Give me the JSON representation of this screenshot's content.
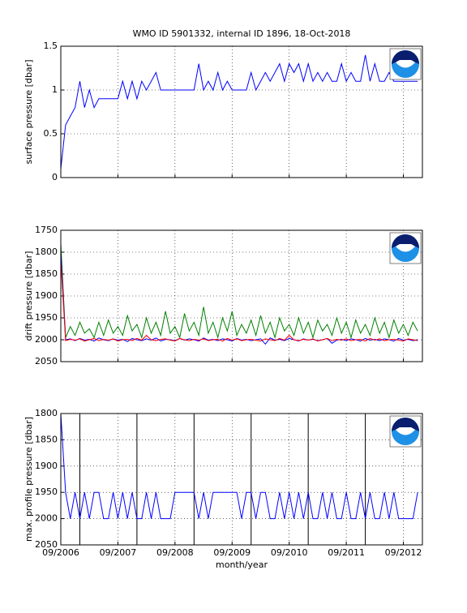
{
  "chart_data": [
    {
      "type": "line",
      "title": "WMO ID 5901332, internal ID 1896, 18-Oct-2018",
      "ylabel": "surface pressure [dbar]",
      "x": [
        "2006-09",
        "2006-10",
        "2006-11",
        "2006-12",
        "2007-01",
        "2007-02",
        "2007-03",
        "2007-04",
        "2007-05",
        "2007-06",
        "2007-07",
        "2007-08",
        "2007-09",
        "2007-10",
        "2007-11",
        "2007-12",
        "2008-01",
        "2008-02",
        "2008-03",
        "2008-04",
        "2008-05",
        "2008-06",
        "2008-07",
        "2008-08",
        "2008-09",
        "2008-10",
        "2008-11",
        "2008-12",
        "2009-01",
        "2009-02",
        "2009-03",
        "2009-04",
        "2009-05",
        "2009-06",
        "2009-07",
        "2009-08",
        "2009-09",
        "2009-10",
        "2009-11",
        "2009-12",
        "2010-01",
        "2010-02",
        "2010-03",
        "2010-04",
        "2010-05",
        "2010-06",
        "2010-07",
        "2010-08",
        "2010-09",
        "2010-10",
        "2010-11",
        "2010-12",
        "2011-01",
        "2011-02",
        "2011-03",
        "2011-04",
        "2011-05",
        "2011-06",
        "2011-07",
        "2011-08",
        "2011-09",
        "2011-10",
        "2011-11",
        "2011-12",
        "2012-01",
        "2012-02",
        "2012-03",
        "2012-04",
        "2012-05",
        "2012-06",
        "2012-07",
        "2012-08",
        "2012-09",
        "2012-10",
        "2012-11",
        "2012-12"
      ],
      "series": [
        {
          "color": "#0000ff",
          "values": [
            0.1,
            0.6,
            0.7,
            0.8,
            1.1,
            0.8,
            1.0,
            0.8,
            0.9,
            0.9,
            0.9,
            0.9,
            0.9,
            1.1,
            0.9,
            1.1,
            0.9,
            1.1,
            1.0,
            1.1,
            1.2,
            1.0,
            1.0,
            1.0,
            1.0,
            1.0,
            1.0,
            1.0,
            1.0,
            1.3,
            1.0,
            1.1,
            1.0,
            1.2,
            1.0,
            1.1,
            1.0,
            1.0,
            1.0,
            1.0,
            1.2,
            1.0,
            1.1,
            1.2,
            1.1,
            1.2,
            1.3,
            1.1,
            1.3,
            1.2,
            1.3,
            1.1,
            1.3,
            1.1,
            1.2,
            1.1,
            1.2,
            1.1,
            1.1,
            1.3,
            1.1,
            1.2,
            1.1,
            1.1,
            1.4,
            1.1,
            1.3,
            1.1,
            1.1,
            1.2,
            1.1,
            1.1,
            1.1,
            1.1,
            1.1,
            1.1
          ]
        }
      ],
      "xlim": [
        "2006-09",
        "2013-01"
      ],
      "xticks": [
        "2006-09",
        "2007-09",
        "2008-09",
        "2009-09",
        "2010-09",
        "2011-09",
        "2012-09"
      ],
      "ylim": [
        0,
        1.5
      ],
      "yticks": [
        0,
        0.5,
        1,
        1.5
      ],
      "y_reversed": false,
      "grid": true
    },
    {
      "type": "line",
      "ylabel": "drift pressure [dbar]",
      "x": [
        "2006-09",
        "2006-10",
        "2006-11",
        "2006-12",
        "2007-01",
        "2007-02",
        "2007-03",
        "2007-04",
        "2007-05",
        "2007-06",
        "2007-07",
        "2007-08",
        "2007-09",
        "2007-10",
        "2007-11",
        "2007-12",
        "2008-01",
        "2008-02",
        "2008-03",
        "2008-04",
        "2008-05",
        "2008-06",
        "2008-07",
        "2008-08",
        "2008-09",
        "2008-10",
        "2008-11",
        "2008-12",
        "2009-01",
        "2009-02",
        "2009-03",
        "2009-04",
        "2009-05",
        "2009-06",
        "2009-07",
        "2009-08",
        "2009-09",
        "2009-10",
        "2009-11",
        "2009-12",
        "2010-01",
        "2010-02",
        "2010-03",
        "2010-04",
        "2010-05",
        "2010-06",
        "2010-07",
        "2010-08",
        "2010-09",
        "2010-10",
        "2010-11",
        "2010-12",
        "2011-01",
        "2011-02",
        "2011-03",
        "2011-04",
        "2011-05",
        "2011-06",
        "2011-07",
        "2011-08",
        "2011-09",
        "2011-10",
        "2011-11",
        "2011-12",
        "2012-01",
        "2012-02",
        "2012-03",
        "2012-04",
        "2012-05",
        "2012-06",
        "2012-07",
        "2012-08",
        "2012-09",
        "2012-10",
        "2012-11",
        "2012-12"
      ],
      "series": [
        {
          "color": "#008000",
          "values": [
            1780,
            1995,
            1970,
            1990,
            1960,
            1985,
            1975,
            1995,
            1960,
            1990,
            1955,
            1985,
            1970,
            1990,
            1945,
            1980,
            1965,
            1995,
            1950,
            1985,
            1960,
            1990,
            1935,
            1985,
            1970,
            1995,
            1940,
            1980,
            1960,
            1990,
            1925,
            1985,
            1960,
            1995,
            1950,
            1980,
            1935,
            1990,
            1965,
            1985,
            1955,
            1990,
            1945,
            1985,
            1960,
            1995,
            1950,
            1980,
            1965,
            1990,
            1950,
            1985,
            1960,
            1995,
            1955,
            1980,
            1965,
            1990,
            1950,
            1985,
            1960,
            1995,
            1955,
            1985,
            1965,
            1990,
            1950,
            1985,
            1960,
            1995,
            1955,
            1985,
            1965,
            1990,
            1960,
            1980
          ]
        },
        {
          "color": "#0000ff",
          "values": [
            1800,
            2000,
            1998,
            2002,
            1997,
            2001,
            1999,
            2003,
            1996,
            2000,
            2002,
            1998,
            2001,
            1999,
            2004,
            1997,
            2000,
            2002,
            1998,
            2001,
            1996,
            2003,
            1999,
            2000,
            2002,
            1997,
            2001,
            1998,
            2000,
            2003,
            1996,
            2001,
            1999,
            2002,
            1998,
            2000,
            2003,
            1997,
            2001,
            1999,
            2002,
            2000,
            1998,
            2010,
            1996,
            2001,
            1999,
            2002,
            1997,
            2000,
            2003,
            1998,
            2001,
            1999,
            2002,
            2000,
            1997,
            2008,
            2001,
            1999,
            2002,
            1998,
            2000,
            2003,
            1997,
            2001,
            1999,
            2002,
            1998,
            2000,
            2003,
            1997,
            2001,
            1999,
            2002,
            2000
          ]
        },
        {
          "color": "#ff0000",
          "values": [
            1820,
            2002,
            1999,
            2001,
            1998,
            2003,
            2000,
            1997,
            2002,
            1999,
            2001,
            1998,
            2003,
            2000,
            1999,
            2002,
            1997,
            2001,
            1990,
            2000,
            2002,
            1999,
            1998,
            2001,
            2003,
            1997,
            2000,
            2002,
            1999,
            2001,
            1998,
            2002,
            2000,
            1999,
            2003,
            1997,
            2001,
            1998,
            2002,
            2000,
            1999,
            2001,
            2003,
            1998,
            2000,
            2002,
            1997,
            2001,
            1990,
            2000,
            2002,
            1999,
            2001,
            1998,
            2003,
            2000,
            1997,
            2002,
            1999,
            2001,
            1998,
            2002,
            2000,
            1999,
            2003,
            1997,
            2001,
            1998,
            2002,
            2000,
            1999,
            2001,
            2003,
            1998,
            2000,
            2002
          ]
        }
      ],
      "xlim": [
        "2006-09",
        "2013-01"
      ],
      "xticks": [
        "2006-09",
        "2007-09",
        "2008-09",
        "2009-09",
        "2010-09",
        "2011-09",
        "2012-09"
      ],
      "ylim": [
        1750,
        2050
      ],
      "yticks": [
        1750,
        1800,
        1850,
        1900,
        1950,
        2000,
        2050
      ],
      "y_reversed": true,
      "grid": true
    },
    {
      "type": "line",
      "ylabel": "max. profile pressure [dbar]",
      "xlabel": "month/year",
      "x": [
        "2006-09",
        "2006-10",
        "2006-11",
        "2006-12",
        "2007-01",
        "2007-02",
        "2007-03",
        "2007-04",
        "2007-05",
        "2007-06",
        "2007-07",
        "2007-08",
        "2007-09",
        "2007-10",
        "2007-11",
        "2007-12",
        "2008-01",
        "2008-02",
        "2008-03",
        "2008-04",
        "2008-05",
        "2008-06",
        "2008-07",
        "2008-08",
        "2008-09",
        "2008-10",
        "2008-11",
        "2008-12",
        "2009-01",
        "2009-02",
        "2009-03",
        "2009-04",
        "2009-05",
        "2009-06",
        "2009-07",
        "2009-08",
        "2009-09",
        "2009-10",
        "2009-11",
        "2009-12",
        "2010-01",
        "2010-02",
        "2010-03",
        "2010-04",
        "2010-05",
        "2010-06",
        "2010-07",
        "2010-08",
        "2010-09",
        "2010-10",
        "2010-11",
        "2010-12",
        "2011-01",
        "2011-02",
        "2011-03",
        "2011-04",
        "2011-05",
        "2011-06",
        "2011-07",
        "2011-08",
        "2011-09",
        "2011-10",
        "2011-11",
        "2011-12",
        "2012-01",
        "2012-02",
        "2012-03",
        "2012-04",
        "2012-05",
        "2012-06",
        "2012-07",
        "2012-08",
        "2012-09",
        "2012-10",
        "2012-11",
        "2012-12"
      ],
      "series": [
        {
          "color": "#0000ff",
          "values": [
            1800,
            1950,
            2000,
            1950,
            2000,
            1950,
            2000,
            1950,
            1950,
            2000,
            2000,
            1950,
            2000,
            1950,
            2000,
            1950,
            2000,
            2000,
            1950,
            2000,
            1950,
            2000,
            2000,
            2000,
            1950,
            1950,
            1950,
            1950,
            1950,
            2000,
            1950,
            2000,
            1950,
            1950,
            1950,
            1950,
            1950,
            1950,
            2000,
            1950,
            1950,
            2000,
            1950,
            1950,
            2000,
            2000,
            1950,
            2000,
            1950,
            2000,
            1950,
            2000,
            1950,
            2000,
            2000,
            1950,
            2000,
            1950,
            2000,
            2000,
            1950,
            2000,
            2000,
            1950,
            2000,
            1950,
            2000,
            2000,
            1950,
            2000,
            1950,
            2000,
            2000,
            2000,
            2000,
            1950
          ]
        }
      ],
      "vlines": [
        "2007-01",
        "2008-01",
        "2009-01",
        "2010-01",
        "2011-01",
        "2012-01"
      ],
      "xlim": [
        "2006-09",
        "2013-01"
      ],
      "xticks": [
        {
          "value": "2006-09",
          "label": "09/2006"
        },
        {
          "value": "2007-09",
          "label": "09/2007"
        },
        {
          "value": "2008-09",
          "label": "09/2008"
        },
        {
          "value": "2009-09",
          "label": "09/2009"
        },
        {
          "value": "2010-09",
          "label": "09/2010"
        },
        {
          "value": "2011-09",
          "label": "09/2011"
        },
        {
          "value": "2012-09",
          "label": "09/2012"
        }
      ],
      "ylim": [
        1800,
        2050
      ],
      "yticks": [
        1800,
        1850,
        1900,
        1950,
        2000,
        2050
      ],
      "y_reversed": true,
      "grid": true
    }
  ]
}
